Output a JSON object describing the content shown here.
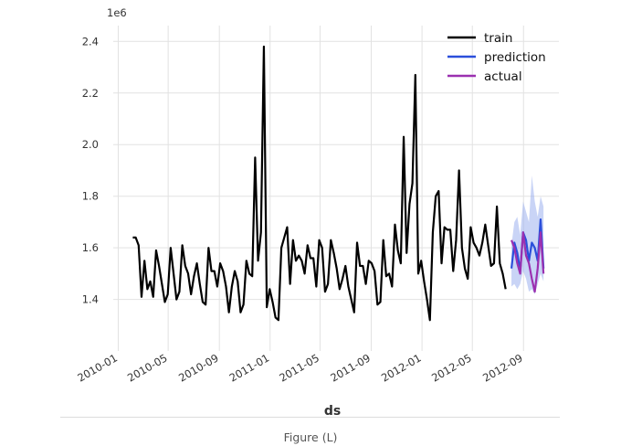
{
  "figure_caption": "Figure (L)",
  "chart_data": {
    "type": "line",
    "xlabel": "ds",
    "ylabel": "",
    "y_offset_label": "1e6",
    "ylim": [
      1.25,
      2.44
    ],
    "yticks": [
      1.4,
      1.6,
      1.8,
      2.0,
      2.2,
      2.4
    ],
    "ytick_labels": [
      "1.4",
      "1.6",
      "1.8",
      "2.0",
      "2.2",
      "2.4"
    ],
    "xlim": [
      "2009-12-20",
      "2012-11-25"
    ],
    "xticks": [
      "2010-01-01",
      "2010-05-01",
      "2010-09-01",
      "2011-01-01",
      "2011-05-01",
      "2011-09-01",
      "2012-01-01",
      "2012-05-01",
      "2012-09-01"
    ],
    "xtick_labels": [
      "2010-01",
      "2010-05",
      "2010-09",
      "2011-01",
      "2011-05",
      "2011-09",
      "2012-01",
      "2012-05",
      "2012-09"
    ],
    "grid": true,
    "legend_position": "top-right",
    "series": [
      {
        "name": "train",
        "color": "#000000",
        "start": "2010-02-05",
        "step_days": 7,
        "values": [
          1.64,
          1.64,
          1.61,
          1.41,
          1.55,
          1.44,
          1.47,
          1.41,
          1.59,
          1.53,
          1.46,
          1.39,
          1.42,
          1.6,
          1.5,
          1.4,
          1.43,
          1.61,
          1.53,
          1.5,
          1.42,
          1.49,
          1.54,
          1.46,
          1.39,
          1.38,
          1.6,
          1.51,
          1.51,
          1.45,
          1.54,
          1.51,
          1.45,
          1.35,
          1.45,
          1.51,
          1.47,
          1.35,
          1.38,
          1.55,
          1.5,
          1.49,
          1.95,
          1.55,
          1.66,
          2.38,
          1.37,
          1.44,
          1.39,
          1.33,
          1.32,
          1.6,
          1.64,
          1.68,
          1.46,
          1.63,
          1.55,
          1.57,
          1.55,
          1.5,
          1.61,
          1.56,
          1.56,
          1.45,
          1.63,
          1.6,
          1.43,
          1.46,
          1.63,
          1.58,
          1.52,
          1.44,
          1.48,
          1.53,
          1.45,
          1.4,
          1.35,
          1.62,
          1.53,
          1.53,
          1.46,
          1.55,
          1.54,
          1.51,
          1.38,
          1.39,
          1.63,
          1.49,
          1.5,
          1.45,
          1.69,
          1.59,
          1.54,
          2.03,
          1.58,
          1.77,
          1.85,
          2.27,
          1.5,
          1.55,
          1.47,
          1.4,
          1.32,
          1.66,
          1.8,
          1.82,
          1.54,
          1.68,
          1.67,
          1.67,
          1.51,
          1.63,
          1.9,
          1.6,
          1.52,
          1.48,
          1.68,
          1.62,
          1.6,
          1.57,
          1.62,
          1.69,
          1.61,
          1.53,
          1.54,
          1.76,
          1.54,
          1.5,
          1.44
        ]
      },
      {
        "name": "prediction",
        "color": "#2b4fdb",
        "band_color": "#9db0ee",
        "start": "2012-08-03",
        "step_days": 7,
        "values": [
          1.52,
          1.62,
          1.58,
          1.51,
          1.66,
          1.63,
          1.55,
          1.62,
          1.6,
          1.55,
          1.71,
          1.52
        ],
        "lower": [
          1.45,
          1.46,
          1.44,
          1.46,
          1.51,
          1.48,
          1.43,
          1.44,
          1.42,
          1.46,
          1.5,
          1.47
        ],
        "upper": [
          1.61,
          1.7,
          1.72,
          1.65,
          1.78,
          1.74,
          1.7,
          1.88,
          1.78,
          1.72,
          1.8,
          1.76
        ]
      },
      {
        "name": "actual",
        "color": "#9b30b0",
        "start": "2012-08-03",
        "step_days": 7,
        "values": [
          1.63,
          1.6,
          1.54,
          1.5,
          1.66,
          1.57,
          1.54,
          1.48,
          1.43,
          1.52,
          1.66,
          1.5
        ]
      }
    ]
  }
}
